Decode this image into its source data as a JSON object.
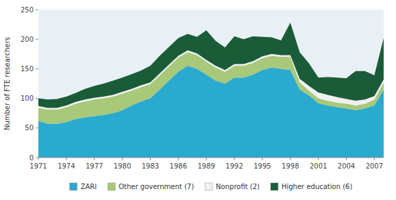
{
  "chart_data": {
    "type": "area",
    "stacked": true,
    "ylabel": "Number of FTE researchers",
    "x": [
      1971,
      1972,
      1973,
      1974,
      1975,
      1976,
      1977,
      1978,
      1979,
      1980,
      1981,
      1982,
      1983,
      1984,
      1985,
      1986,
      1987,
      1988,
      1989,
      1990,
      1991,
      1992,
      1993,
      1994,
      1995,
      1996,
      1997,
      1998,
      1999,
      2000,
      2001,
      2002,
      2003,
      2004,
      2005,
      2006,
      2007,
      2008
    ],
    "xlim": [
      1971,
      2008
    ],
    "xticks": [
      1971,
      1974,
      1977,
      1980,
      1983,
      1986,
      1989,
      1992,
      1995,
      1998,
      2001,
      2004,
      2007
    ],
    "ylim": [
      0,
      250
    ],
    "yticks": [
      0,
      50,
      100,
      150,
      200,
      250
    ],
    "grid": false,
    "legend": "bottom",
    "series": [
      {
        "name": "ZARI",
        "color": "#2aaacf",
        "values": [
          62,
          57,
          57,
          60,
          65,
          68,
          70,
          72,
          75,
          80,
          88,
          95,
          100,
          115,
          130,
          145,
          155,
          150,
          140,
          130,
          125,
          135,
          135,
          140,
          148,
          152,
          150,
          148,
          115,
          105,
          92,
          88,
          85,
          83,
          80,
          83,
          88,
          115
        ]
      },
      {
        "name": "Other government (7)",
        "color": "#a8c87a",
        "values": [
          22,
          24,
          24,
          25,
          26,
          27,
          28,
          28,
          28,
          28,
          25,
          24,
          24,
          24,
          24,
          24,
          23,
          23,
          22,
          22,
          20,
          20,
          20,
          20,
          20,
          20,
          20,
          22,
          12,
          8,
          8,
          8,
          8,
          8,
          8,
          8,
          10,
          12
        ]
      },
      {
        "name": "Nonprofit (2)",
        "color": "#f0f0f0",
        "values": [
          3,
          3,
          3,
          3,
          3,
          3,
          3,
          3,
          3,
          3,
          3,
          3,
          3,
          3,
          3,
          3,
          3,
          3,
          3,
          3,
          3,
          3,
          3,
          3,
          3,
          3,
          3,
          3,
          6,
          8,
          10,
          10,
          9,
          8,
          8,
          7,
          6,
          5
        ]
      },
      {
        "name": "Higher education (6)",
        "color": "#1a5c38",
        "values": [
          13,
          14,
          15,
          15,
          15,
          18,
          20,
          22,
          24,
          24,
          25,
          25,
          28,
          30,
          30,
          30,
          28,
          28,
          50,
          42,
          38,
          47,
          42,
          42,
          33,
          28,
          25,
          55,
          45,
          38,
          25,
          30,
          33,
          35,
          50,
          48,
          35,
          70
        ]
      }
    ]
  }
}
